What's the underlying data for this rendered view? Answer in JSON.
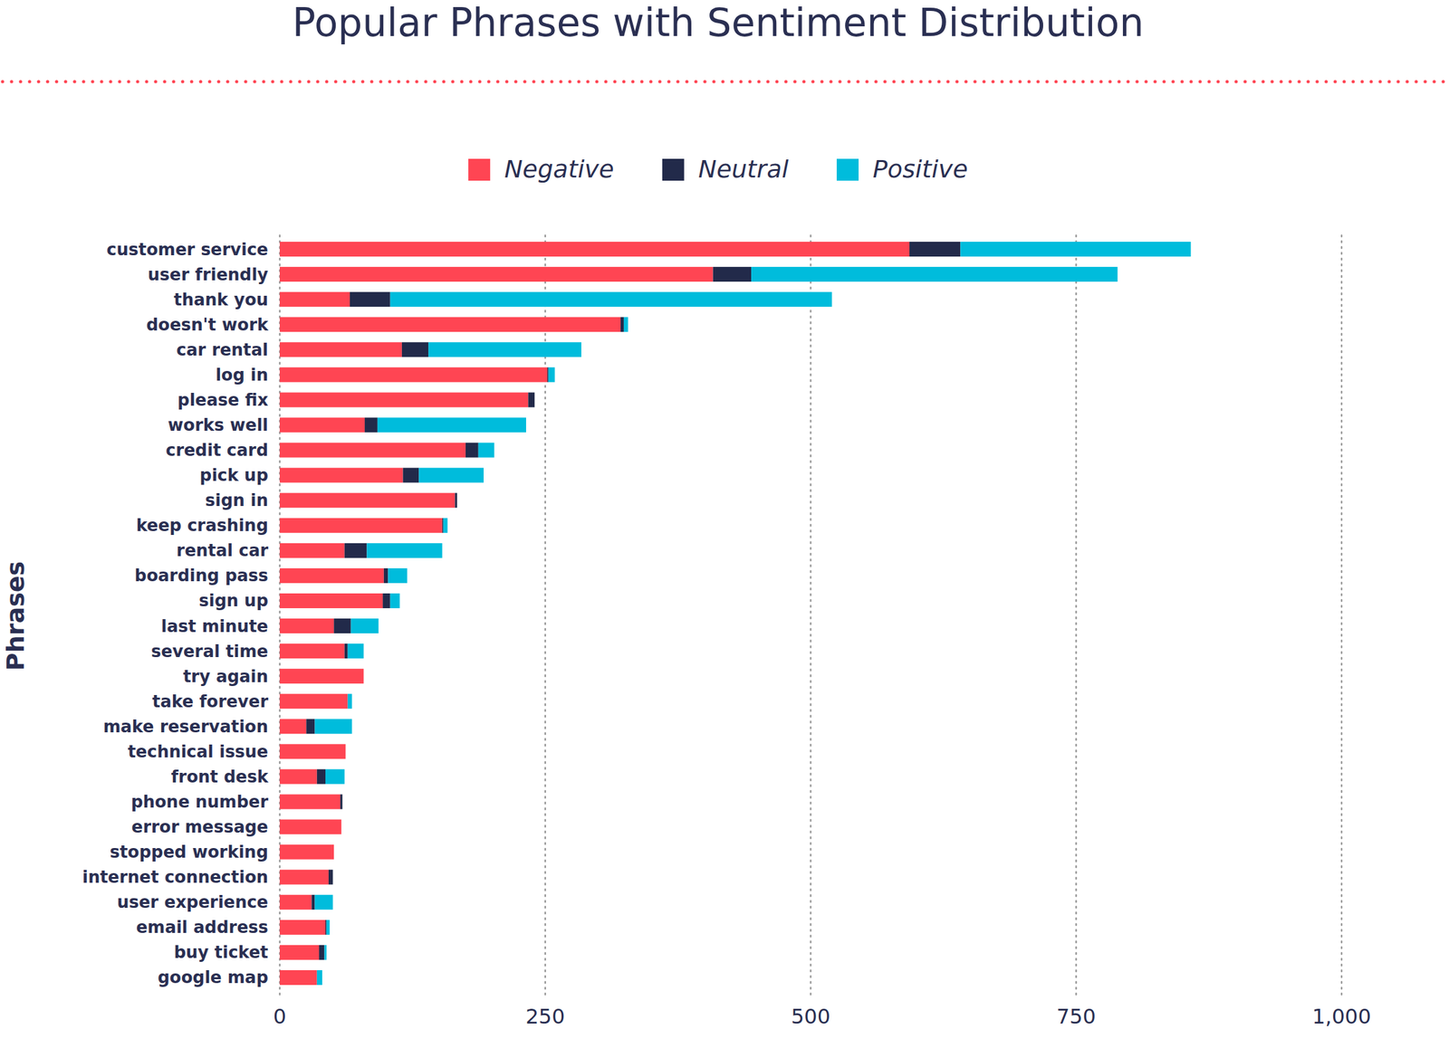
{
  "chart_data": {
    "type": "bar",
    "title": "Popular Phrases with Sentiment Distribution",
    "y_label": "Phrases",
    "orientation": "horizontal",
    "stacked": true,
    "grid": true,
    "legend": "top",
    "categories": [
      "customer service",
      "user friendly",
      "thank you",
      "doesn't work",
      "car rental",
      "log in",
      "please fix",
      "works well",
      "credit card",
      "pick up",
      "sign in",
      "keep crashing",
      "rental car",
      "boarding pass",
      "sign up",
      "last minute",
      "several time",
      "try again",
      "take forever",
      "make reservation",
      "technical issue",
      "front desk",
      "phone number",
      "error message",
      "stopped working",
      "internet connection",
      "user experience",
      "email address",
      "buy ticket",
      "google map"
    ],
    "series": [
      {
        "name": "Negative",
        "color": "#ff4553",
        "values": [
          593,
          408,
          66,
          321,
          115,
          252,
          234,
          80,
          175,
          116,
          165,
          153,
          61,
          98,
          97,
          51,
          61,
          79,
          64,
          25,
          62,
          35,
          57,
          58,
          51,
          46,
          30,
          43,
          37,
          35
        ]
      },
      {
        "name": "Neutral",
        "color": "#222a4a",
        "values": [
          48,
          36,
          38,
          3,
          25,
          1,
          6,
          12,
          12,
          15,
          2,
          1,
          21,
          4,
          7,
          16,
          3,
          0,
          0,
          8,
          0,
          8,
          2,
          0,
          0,
          4,
          3,
          1,
          5,
          0
        ]
      },
      {
        "name": "Positive",
        "color": "#00bcdc",
        "values": [
          217,
          345,
          416,
          4,
          144,
          6,
          0,
          140,
          15,
          61,
          0,
          4,
          71,
          18,
          9,
          26,
          15,
          0,
          4,
          35,
          0,
          18,
          0,
          0,
          0,
          0,
          17,
          3,
          2,
          5
        ]
      }
    ],
    "xlim": [
      0,
      1000
    ],
    "xticks": [
      0,
      250,
      500,
      750,
      {
        "value": 1000,
        "label": "1,000"
      }
    ]
  }
}
